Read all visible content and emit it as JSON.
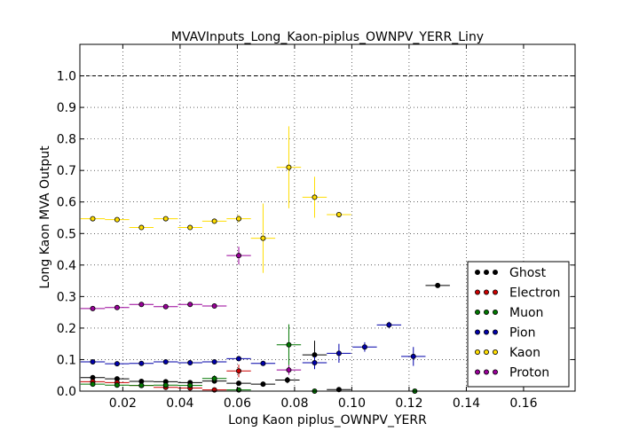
{
  "chart_data": {
    "type": "scatter",
    "title": "MVAVInputs_Long_Kaon-piplus_OWNPV_YERR_Liny",
    "xlabel": "Long Kaon piplus_OWNPV_YERR",
    "ylabel": "Long Kaon MVA Output",
    "xlim": [
      0.005,
      0.178
    ],
    "ylim": [
      0.0,
      1.1
    ],
    "x_ticks": [
      "0.02",
      "0.04",
      "0.06",
      "0.08",
      "0.10",
      "0.12",
      "0.14",
      "0.16"
    ],
    "y_ticks": [
      "0.0",
      "0.1",
      "0.2",
      "0.3",
      "0.4",
      "0.5",
      "0.6",
      "0.7",
      "0.8",
      "0.9",
      "1.0"
    ],
    "grid": true,
    "reference_line_y": 1.0,
    "legend_position": "lower-right",
    "series": [
      {
        "name": "Ghost",
        "color": "#000000",
        "x": [
          0.0095,
          0.018,
          0.0265,
          0.035,
          0.0435,
          0.052,
          0.0605,
          0.069,
          0.0775,
          0.087,
          0.0955,
          0.13
        ],
        "y": [
          0.043,
          0.039,
          0.031,
          0.03,
          0.027,
          0.032,
          0.025,
          0.022,
          0.035,
          0.115,
          0.005,
          0.335
        ],
        "yerr": [
          0.004,
          0.004,
          0.004,
          0.004,
          0.005,
          0.006,
          0.007,
          0.008,
          0.01,
          0.045,
          0.004,
          0.004
        ]
      },
      {
        "name": "Electron",
        "color": "#cc0000",
        "x": [
          0.0095,
          0.018,
          0.0265,
          0.035,
          0.0435,
          0.052,
          0.0605
        ],
        "y": [
          0.03,
          0.027,
          0.018,
          0.012,
          0.01,
          0.004,
          0.064
        ],
        "yerr": [
          0.004,
          0.004,
          0.004,
          0.004,
          0.004,
          0.004,
          0.02
        ]
      },
      {
        "name": "Muon",
        "color": "#007700",
        "x": [
          0.0095,
          0.018,
          0.0265,
          0.035,
          0.0435,
          0.052,
          0.0605,
          0.078,
          0.087,
          0.122
        ],
        "y": [
          0.022,
          0.019,
          0.018,
          0.019,
          0.018,
          0.04,
          0.004,
          0.147,
          0.0,
          0.0
        ],
        "yerr": [
          0.004,
          0.004,
          0.004,
          0.004,
          0.004,
          0.01,
          0.004,
          0.065,
          0.003,
          0.003
        ]
      },
      {
        "name": "Pion",
        "color": "#0000aa",
        "x": [
          0.0095,
          0.018,
          0.0265,
          0.035,
          0.0435,
          0.052,
          0.0605,
          0.069,
          0.087,
          0.0955,
          0.1045,
          0.113,
          0.1215
        ],
        "y": [
          0.093,
          0.087,
          0.088,
          0.093,
          0.09,
          0.093,
          0.103,
          0.088,
          0.09,
          0.12,
          0.14,
          0.21,
          0.11
        ],
        "yerr": [
          0.004,
          0.004,
          0.004,
          0.004,
          0.004,
          0.005,
          0.008,
          0.008,
          0.02,
          0.03,
          0.015,
          0.01,
          0.03
        ]
      },
      {
        "name": "Kaon",
        "color": "#ffdd00",
        "x": [
          0.0095,
          0.018,
          0.0265,
          0.035,
          0.0435,
          0.052,
          0.0605,
          0.069,
          0.078,
          0.087,
          0.0955
        ],
        "y": [
          0.547,
          0.544,
          0.519,
          0.547,
          0.519,
          0.539,
          0.547,
          0.485,
          0.71,
          0.615,
          0.56
        ],
        "yerr": [
          0.006,
          0.006,
          0.006,
          0.006,
          0.007,
          0.008,
          0.012,
          0.11,
          0.13,
          0.065,
          0.007
        ]
      },
      {
        "name": "Proton",
        "color": "#990099",
        "x": [
          0.0095,
          0.018,
          0.0265,
          0.035,
          0.0435,
          0.052,
          0.0605,
          0.078
        ],
        "y": [
          0.262,
          0.265,
          0.275,
          0.268,
          0.275,
          0.27,
          0.43,
          0.067
        ],
        "yerr": [
          0.005,
          0.005,
          0.005,
          0.005,
          0.005,
          0.006,
          0.028,
          0.015
        ]
      }
    ]
  }
}
